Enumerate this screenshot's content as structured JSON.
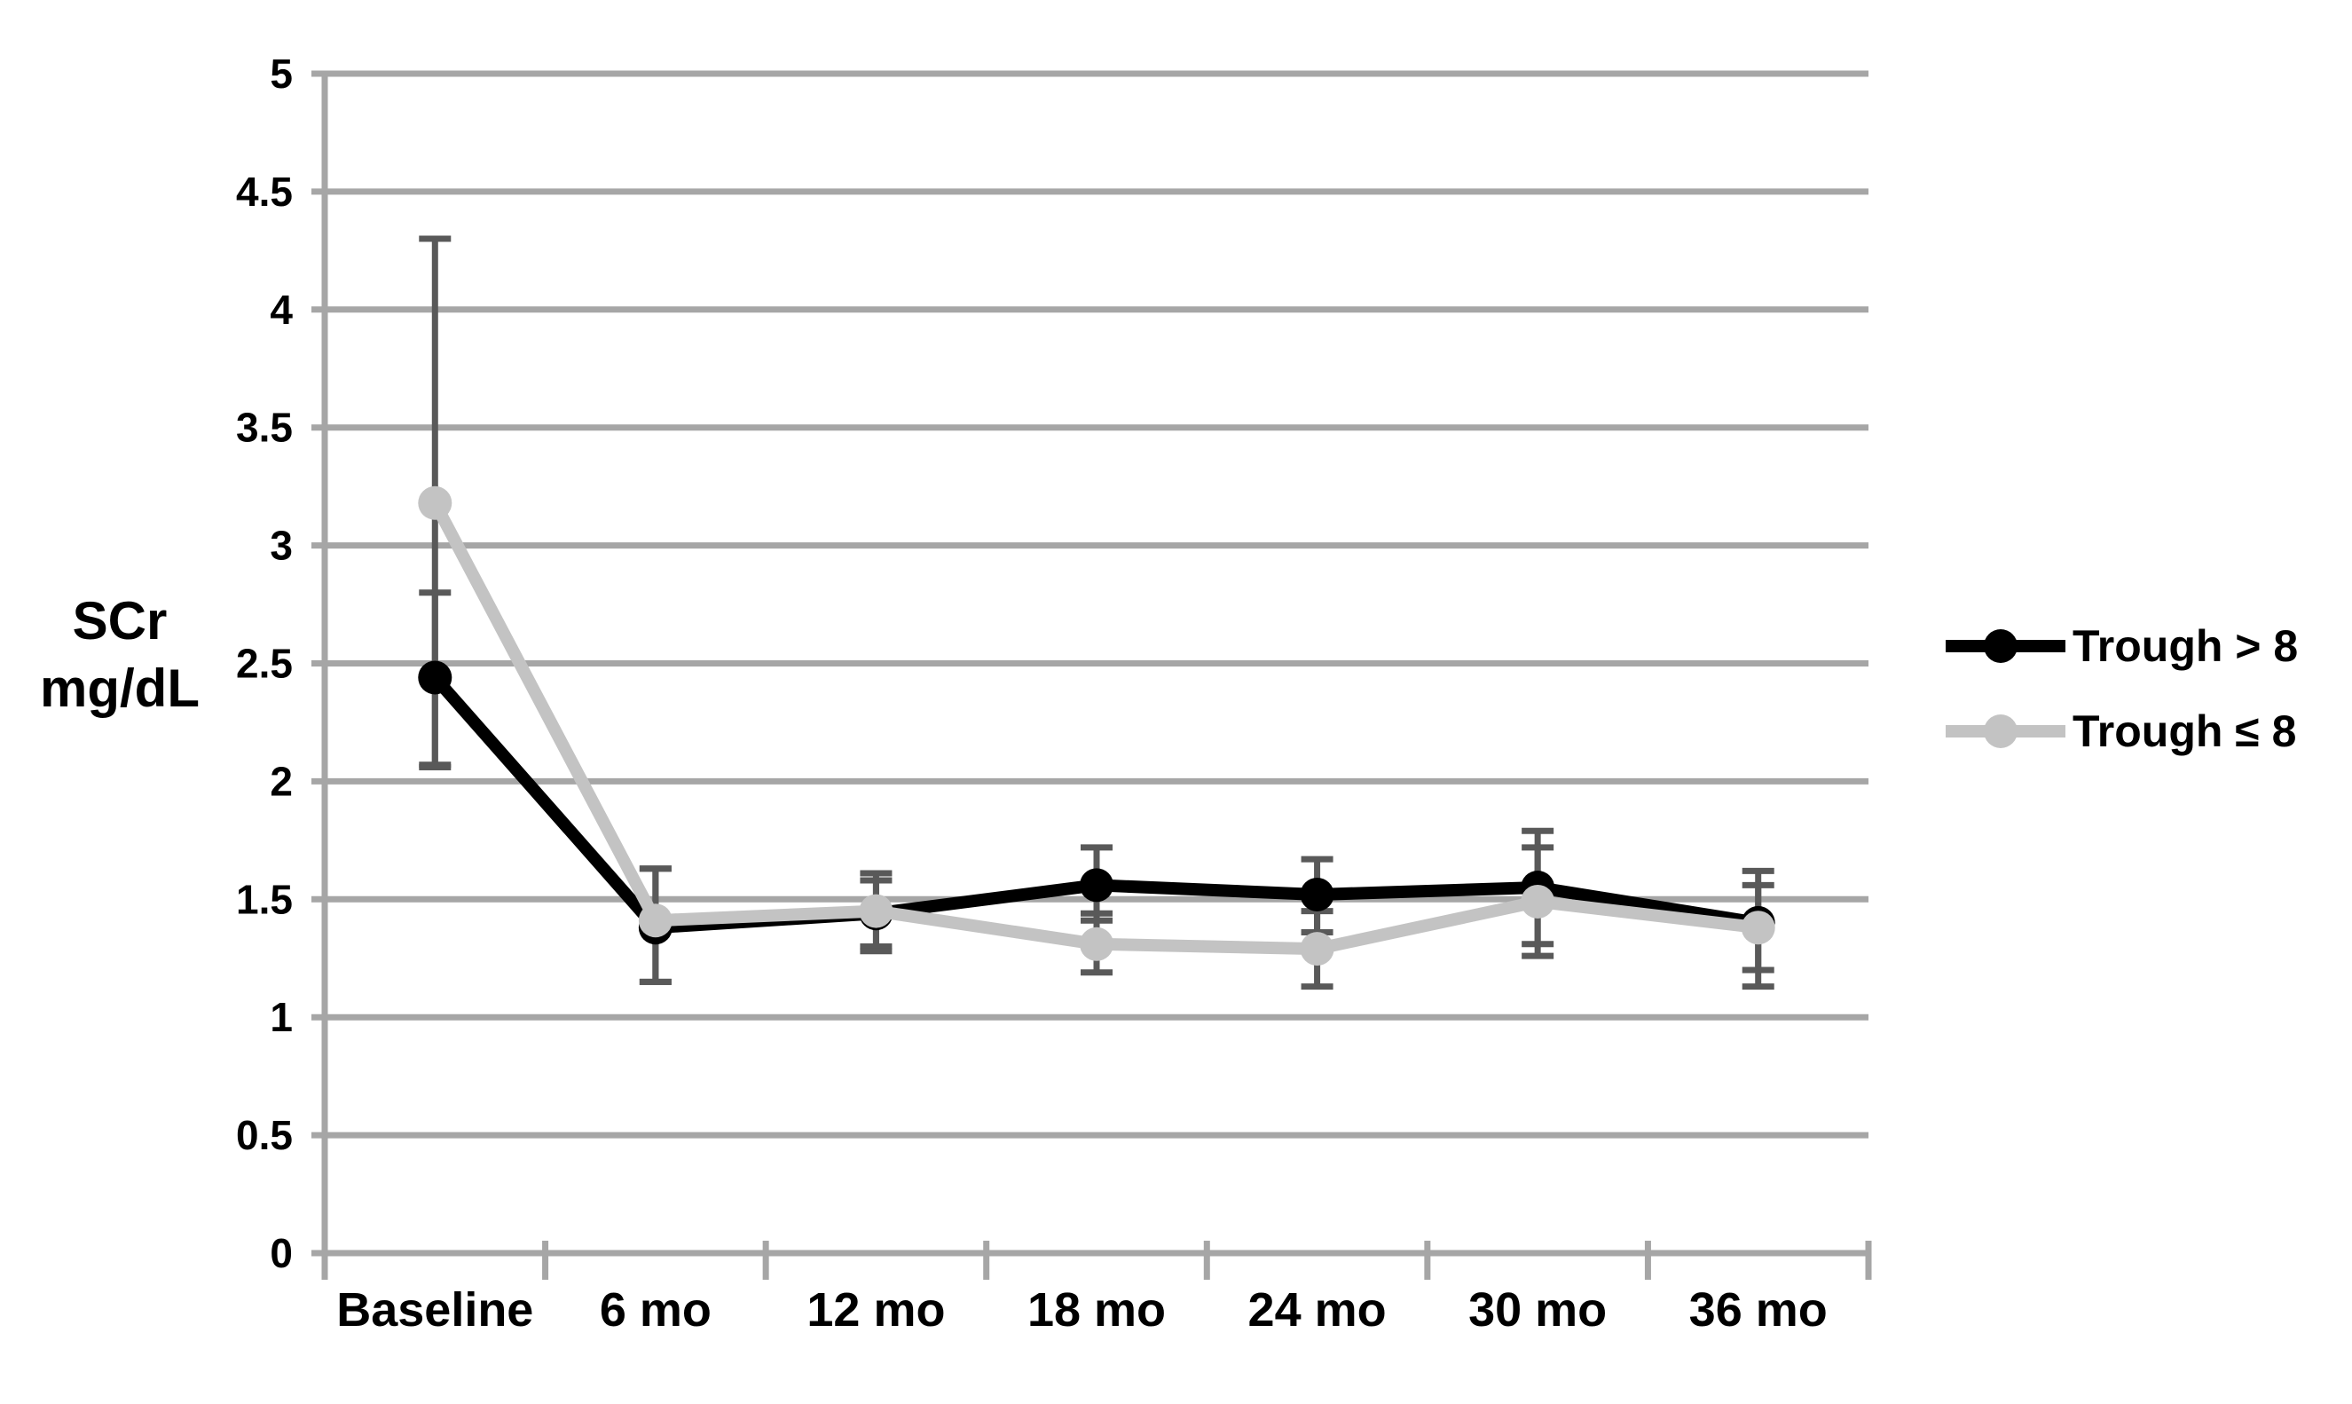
{
  "chart_data": {
    "type": "line",
    "title": "",
    "ylabel_lines": [
      "SCr",
      "mg/dL"
    ],
    "categories": [
      "Baseline",
      "6 mo",
      "12 mo",
      "18 mo",
      "24 mo",
      "30 mo",
      "36 mo"
    ],
    "y_axis": {
      "min": 0,
      "max": 5,
      "step": 0.5,
      "tick_labels": [
        "5",
        "4.5",
        "4",
        "3.5",
        "3",
        "2.5",
        "2",
        "1.5",
        "1",
        "0.5",
        "0"
      ]
    },
    "grid": true,
    "gridline_color": "#a6a6a6",
    "error_bar_color": "#595959",
    "legend_position": "right",
    "series": [
      {
        "name": "Trough > 8",
        "color": "#000000",
        "values": [
          2.44,
          1.38,
          1.44,
          1.56,
          1.52,
          1.55,
          1.4
        ],
        "err_low": [
          2.06,
          1.15,
          1.3,
          1.41,
          1.36,
          1.31,
          1.2
        ],
        "err_high": [
          2.8,
          1.63,
          1.61,
          1.72,
          1.67,
          1.79,
          1.62
        ]
      },
      {
        "name": "Trough ≤ 8",
        "color": "#c3c3c3",
        "values": [
          3.18,
          1.41,
          1.45,
          1.31,
          1.29,
          1.49,
          1.38
        ],
        "err_low": [
          2.07,
          1.15,
          1.28,
          1.19,
          1.13,
          1.26,
          1.13
        ],
        "err_high": [
          4.3,
          1.63,
          1.58,
          1.44,
          1.45,
          1.72,
          1.56
        ]
      }
    ]
  }
}
